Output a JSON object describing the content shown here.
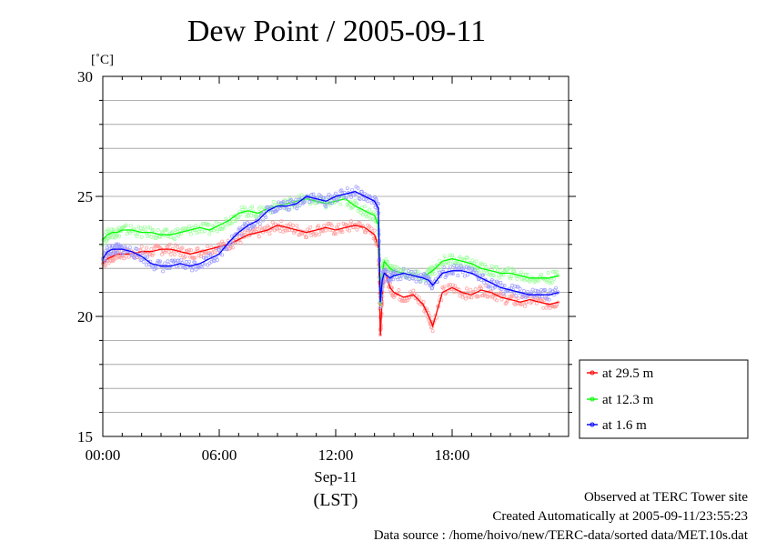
{
  "chart_data": {
    "type": "line",
    "title": "Dew Point / 2005-09-11",
    "ylabel": "[˚C]",
    "ylim": [
      15,
      30
    ],
    "yticks": [
      15,
      20,
      25,
      30
    ],
    "xlim": [
      0,
      24
    ],
    "x_tick_labels": [
      {
        "x": 0,
        "label": "00:00"
      },
      {
        "x": 6,
        "label": "06:00"
      },
      {
        "x": 12,
        "label": "12:00"
      },
      {
        "x": 18,
        "label": "18:00"
      }
    ],
    "xlabel_date": "Sep-11",
    "xlabel_unit": "(LST)",
    "grid": true,
    "legend_position": "right",
    "x": [
      0.0,
      0.25,
      0.5,
      0.75,
      1.0,
      1.5,
      2.0,
      2.5,
      3.0,
      3.5,
      4.0,
      4.5,
      5.0,
      5.5,
      6.0,
      6.5,
      7.0,
      7.5,
      8.0,
      8.5,
      9.0,
      9.5,
      10.0,
      10.5,
      11.0,
      11.5,
      12.0,
      12.5,
      13.0,
      13.5,
      14.0,
      14.2,
      14.3,
      14.4,
      14.5,
      14.8,
      15.0,
      15.5,
      16.0,
      16.5,
      16.8,
      17.0,
      17.5,
      18.0,
      18.5,
      19.0,
      19.5,
      20.0,
      20.5,
      21.0,
      21.5,
      22.0,
      22.5,
      23.0,
      23.5
    ],
    "series": [
      {
        "name": "at 29.5 m",
        "color": "#ff0000",
        "values": [
          22.2,
          22.4,
          22.5,
          22.6,
          22.6,
          22.6,
          22.7,
          22.7,
          22.8,
          22.8,
          22.7,
          22.6,
          22.7,
          22.8,
          22.9,
          23.0,
          23.2,
          23.4,
          23.5,
          23.6,
          23.8,
          23.7,
          23.6,
          23.5,
          23.6,
          23.7,
          23.6,
          23.7,
          23.8,
          23.7,
          23.4,
          22.9,
          19.2,
          20.8,
          22.0,
          21.2,
          21.0,
          20.8,
          20.9,
          20.5,
          20.0,
          19.6,
          21.0,
          21.2,
          21.0,
          20.9,
          21.1,
          21.0,
          20.8,
          20.7,
          20.6,
          20.7,
          20.6,
          20.5,
          20.6
        ]
      },
      {
        "name": "at 12.3 m",
        "color": "#00ff00",
        "values": [
          23.2,
          23.4,
          23.5,
          23.5,
          23.6,
          23.6,
          23.5,
          23.5,
          23.4,
          23.4,
          23.5,
          23.6,
          23.7,
          23.6,
          23.8,
          24.0,
          24.3,
          24.4,
          24.3,
          24.5,
          24.6,
          24.7,
          24.8,
          24.9,
          24.8,
          24.7,
          24.8,
          24.9,
          24.6,
          24.4,
          24.2,
          23.8,
          20.5,
          21.8,
          22.3,
          22.0,
          21.9,
          21.8,
          21.7,
          21.6,
          21.8,
          21.9,
          22.3,
          22.4,
          22.3,
          22.2,
          22.0,
          21.9,
          21.8,
          21.8,
          21.7,
          21.6,
          21.6,
          21.6,
          21.7
        ]
      },
      {
        "name": "at 1.6 m",
        "color": "#0000ff",
        "values": [
          22.4,
          22.7,
          22.8,
          22.8,
          22.8,
          22.7,
          22.5,
          22.2,
          22.1,
          22.1,
          22.2,
          22.1,
          22.2,
          22.4,
          22.6,
          23.1,
          23.5,
          23.8,
          24.0,
          24.4,
          24.6,
          24.6,
          24.7,
          25.0,
          24.9,
          24.8,
          25.0,
          25.1,
          25.2,
          25.0,
          24.8,
          24.5,
          20.6,
          21.5,
          21.8,
          21.6,
          21.7,
          21.8,
          21.7,
          21.6,
          21.5,
          21.3,
          21.8,
          21.9,
          21.9,
          21.8,
          21.6,
          21.4,
          21.2,
          21.1,
          21.0,
          20.9,
          20.9,
          20.9,
          21.0
        ]
      }
    ]
  },
  "footer": {
    "line1": "Observed at TERC Tower site",
    "line2": "Created Automatically at 2005-09-11/23:55:23",
    "line3": "Data source : /home/hoivo/new/TERC-data/sorted  data/MET.10s.dat"
  }
}
